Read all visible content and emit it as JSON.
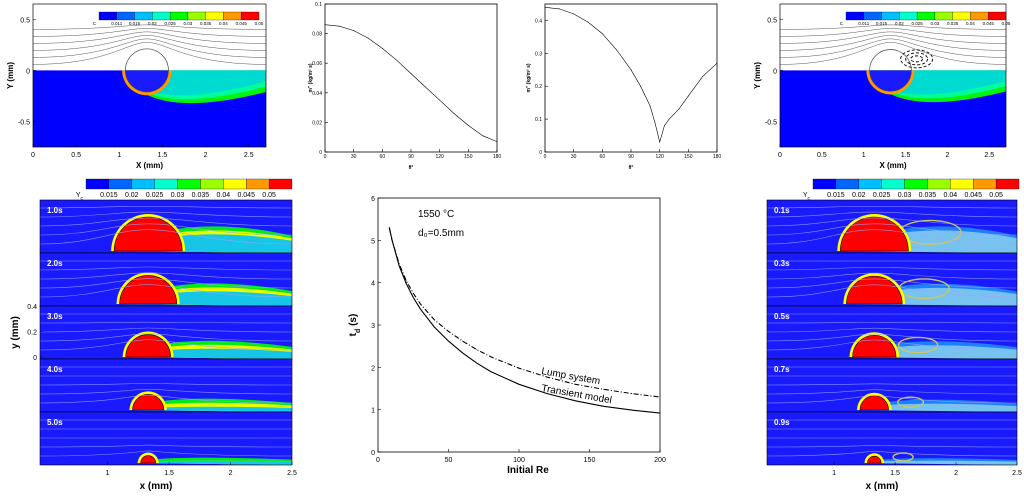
{
  "chart_data": [
    {
      "id": "contour-top-left",
      "type": "heatmap",
      "xlabel": "X (mm)",
      "ylabel": "Y (mm)",
      "xticks": [
        "0",
        "0.5",
        "1",
        "1.5",
        "2",
        "2.5"
      ],
      "yticks": [
        "0.5",
        "0",
        "-0.5"
      ],
      "xlim": [
        0,
        2.7
      ],
      "ylim": [
        -0.75,
        0.65
      ],
      "legend_symbol": "C",
      "legend_values": [
        "0.011",
        "0.015",
        "0.02",
        "0.025",
        "0.03",
        "0.035",
        "0.04",
        "0.045",
        "0.05"
      ]
    },
    {
      "id": "mass-flux-1",
      "type": "line",
      "xlabel": "θ°",
      "ylabel": "m'' (kg/m² s)",
      "xticks": [
        "0",
        "30",
        "60",
        "90",
        "120",
        "150",
        "180"
      ],
      "yticks": [
        "0",
        "0.02",
        "0.04",
        "0.06",
        "0.08",
        "0.1"
      ],
      "xlim": [
        0,
        180
      ],
      "ylim": [
        0,
        0.1
      ],
      "series": [
        {
          "x": [
            0,
            15,
            30,
            45,
            60,
            75,
            90,
            105,
            120,
            135,
            150,
            165,
            180
          ],
          "y": [
            0.086,
            0.085,
            0.082,
            0.077,
            0.07,
            0.062,
            0.053,
            0.044,
            0.035,
            0.026,
            0.018,
            0.011,
            0.007
          ]
        }
      ]
    },
    {
      "id": "mass-flux-2",
      "type": "line",
      "xlabel": "θ°",
      "ylabel": "m'' (kg/m² s)",
      "xticks": [
        "0",
        "30",
        "60",
        "90",
        "120",
        "150",
        "180"
      ],
      "yticks": [
        "0",
        "0.1",
        "0.2",
        "0.3",
        "0.4"
      ],
      "xlim": [
        0,
        180
      ],
      "ylim": [
        0,
        0.45
      ],
      "series": [
        {
          "x": [
            0,
            15,
            30,
            45,
            60,
            75,
            90,
            100,
            110,
            115,
            120,
            125,
            130,
            140,
            150,
            165,
            180
          ],
          "y": [
            0.44,
            0.435,
            0.42,
            0.395,
            0.36,
            0.31,
            0.25,
            0.2,
            0.14,
            0.09,
            0.03,
            0.08,
            0.1,
            0.13,
            0.17,
            0.23,
            0.27
          ]
        }
      ]
    },
    {
      "id": "contour-top-right",
      "type": "heatmap",
      "xlabel": "X (mm)",
      "ylabel": "Y (mm)",
      "xticks": [
        "0",
        "0.5",
        "1",
        "1.5",
        "2",
        "2.5"
      ],
      "yticks": [
        "0.5",
        "0",
        "-0.5"
      ],
      "xlim": [
        0,
        2.7
      ],
      "ylim": [
        -0.75,
        0.65
      ],
      "legend_symbol": "C",
      "legend_values": [
        "0.011",
        "0.015",
        "0.02",
        "0.025",
        "0.03",
        "0.035",
        "0.04",
        "0.045",
        "0.05"
      ]
    },
    {
      "id": "sequence-left",
      "type": "heatmap",
      "xlabel": "x (mm)",
      "ylabel": "y (mm)",
      "xticks": [
        "1",
        "1.5",
        "2",
        "2.5"
      ],
      "yticks": [
        "0",
        "0.2",
        "0.4"
      ],
      "xlim": [
        0.45,
        2.5
      ],
      "legend_symbol": "Y",
      "legend_subscript": "c",
      "legend_values": [
        "0.015",
        "0.02",
        "0.025",
        "0.03",
        "0.035",
        "0.04",
        "0.045",
        "0.05"
      ],
      "frames": [
        {
          "label": "1.0s",
          "drop_radius": 1.0
        },
        {
          "label": "2.0s",
          "drop_radius": 0.84
        },
        {
          "label": "3.0s",
          "drop_radius": 0.66
        },
        {
          "label": "4.0s",
          "drop_radius": 0.46
        },
        {
          "label": "5.0s",
          "drop_radius": 0.22
        }
      ]
    },
    {
      "id": "td-vs-re",
      "type": "line",
      "xlabel": "Initial Re",
      "ylabel": "t",
      "ylabel_subscript": "d",
      "ylabel_suffix": " (s)",
      "xticks": [
        "0",
        "50",
        "100",
        "150",
        "200"
      ],
      "yticks": [
        "0",
        "1",
        "2",
        "3",
        "4",
        "5",
        "6"
      ],
      "xlim": [
        0,
        200
      ],
      "ylim": [
        0,
        6
      ],
      "annotations": [
        "1550 °C",
        "d₀=0.5mm"
      ],
      "series": [
        {
          "name": "Lump system",
          "style": "dash-dot",
          "x": [
            8,
            10,
            15,
            20,
            25,
            30,
            40,
            50,
            60,
            70,
            80,
            100,
            120,
            140,
            160,
            180,
            200
          ],
          "y": [
            5.3,
            5.0,
            4.45,
            4.05,
            3.75,
            3.5,
            3.12,
            2.85,
            2.62,
            2.42,
            2.25,
            1.98,
            1.77,
            1.6,
            1.48,
            1.38,
            1.3
          ]
        },
        {
          "name": "Transient model",
          "style": "solid",
          "x": [
            8,
            10,
            15,
            20,
            25,
            30,
            40,
            50,
            60,
            70,
            80,
            100,
            120,
            140,
            160,
            180,
            200
          ],
          "y": [
            5.3,
            5.0,
            4.4,
            3.98,
            3.65,
            3.38,
            2.95,
            2.62,
            2.34,
            2.1,
            1.9,
            1.6,
            1.38,
            1.21,
            1.08,
            0.99,
            0.92
          ]
        }
      ]
    },
    {
      "id": "sequence-right",
      "type": "heatmap",
      "xlabel": "x (mm)",
      "xticks": [
        "1",
        "1.5",
        "2",
        "2.5"
      ],
      "xlim": [
        0.45,
        2.5
      ],
      "legend_symbol": "Y",
      "legend_subscript": "c",
      "legend_values": [
        "0.015",
        "0.02",
        "0.025",
        "0.03",
        "0.035",
        "0.04",
        "0.045",
        "0.05"
      ],
      "frames": [
        {
          "label": "0.1s",
          "drop_radius": 1.0
        },
        {
          "label": "0.3s",
          "drop_radius": 0.82
        },
        {
          "label": "0.5s",
          "drop_radius": 0.64
        },
        {
          "label": "0.7s",
          "drop_radius": 0.42
        },
        {
          "label": "0.9s",
          "drop_radius": 0.2
        }
      ]
    }
  ],
  "colors": {
    "contour_scale": [
      "#0000ff",
      "#0066ff",
      "#00bfff",
      "#00ffcc",
      "#00ff00",
      "#99ff00",
      "#ffff00",
      "#ff9900",
      "#ff0000"
    ],
    "contour_bg": "#1a1aff",
    "drop": "#ff0000",
    "streamline": "#9aa6ff"
  }
}
